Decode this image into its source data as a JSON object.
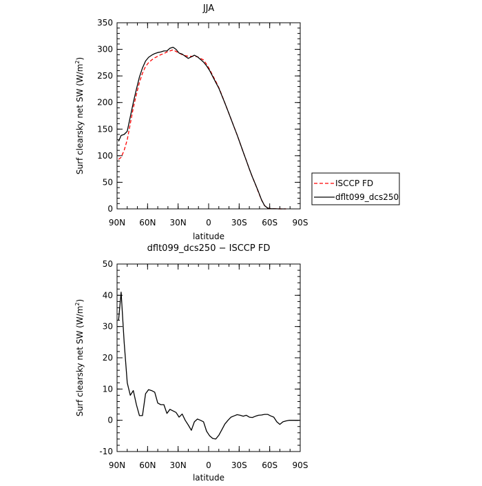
{
  "chart_data": [
    {
      "type": "line",
      "title": "JJA",
      "xlabel": "latitude",
      "ylabel_main": "Surf clearsky net SW (W/m",
      "ylabel_sup": "2",
      "ylabel_tail": ")",
      "xlim": [
        90,
        -90
      ],
      "ylim": [
        0,
        350
      ],
      "yticks": [
        0,
        50,
        100,
        150,
        200,
        250,
        300,
        350
      ],
      "xticks": [
        90,
        60,
        30,
        0,
        -30,
        -60,
        -90
      ],
      "xtick_labels": [
        "90N",
        "60N",
        "30N",
        "0",
        "30S",
        "60S",
        "90S"
      ],
      "legend": [
        "ISCCP FD",
        "dflt099_dcs250"
      ],
      "series": [
        {
          "name": "ISCCP FD",
          "color": "#ff0000",
          "dash": "dashed",
          "x": [
            88.5,
            86,
            83,
            80,
            77,
            74,
            71,
            68,
            65,
            62,
            59,
            56,
            53,
            50,
            47,
            44,
            41,
            38,
            35,
            32,
            29,
            26,
            23,
            20,
            17,
            14,
            11,
            8,
            5,
            2,
            -1,
            -4,
            -7,
            -10,
            -13,
            -16,
            -19,
            -22,
            -25,
            -28,
            -31,
            -34,
            -37,
            -40,
            -43,
            -46,
            -49,
            -52,
            -55,
            -58,
            -61,
            -64,
            -67,
            -70,
            -73,
            -76
          ],
          "y": [
            93,
            97,
            110,
            130,
            160,
            190,
            215,
            238,
            255,
            268,
            275,
            280,
            284,
            287,
            290,
            292,
            295,
            297,
            299,
            296,
            293,
            290,
            288,
            287,
            287,
            287,
            286,
            283,
            280,
            272,
            262,
            251,
            240,
            228,
            214,
            199,
            184,
            169,
            154,
            139,
            123,
            107,
            91,
            75,
            60,
            46,
            31,
            17,
            6,
            1.5,
            0.5,
            0.2,
            0.1,
            0,
            0,
            0
          ]
        },
        {
          "name": "dflt099_dcs250",
          "color": "#000000",
          "dash": "solid",
          "x": [
            88.5,
            86,
            83,
            80,
            77,
            74,
            71,
            68,
            65,
            62,
            59,
            56,
            53,
            50,
            47,
            44,
            41,
            38,
            35,
            32,
            29,
            26,
            23,
            20,
            17,
            14,
            11,
            8,
            5,
            2,
            -1,
            -4,
            -7,
            -10,
            -13,
            -16,
            -19,
            -22,
            -25,
            -28,
            -31,
            -34,
            -37,
            -40,
            -43,
            -46,
            -49,
            -52,
            -55,
            -58,
            -61,
            -64,
            -67,
            -70,
            -73,
            -76
          ],
          "y": [
            127,
            138,
            140,
            146,
            173,
            200,
            225,
            248,
            265,
            278,
            285,
            289,
            292,
            294,
            295,
            297,
            297,
            302,
            304,
            300,
            293,
            291,
            287,
            283,
            286,
            289,
            286,
            281,
            276,
            269,
            260,
            249,
            238,
            227,
            213,
            199,
            184,
            169,
            154,
            139,
            123,
            107,
            91,
            75,
            60,
            46,
            32,
            17,
            6,
            1.5,
            0.5,
            0.2,
            0.1,
            0,
            0,
            0
          ]
        }
      ]
    },
    {
      "type": "line",
      "title": "dflt099_dcs250 − ISCCP FD",
      "xlabel": "latitude",
      "ylabel_main": "Surf clearsky net SW (W/m",
      "ylabel_sup": "2",
      "ylabel_tail": ")",
      "xlim": [
        90,
        -90
      ],
      "ylim": [
        -10,
        50
      ],
      "yticks": [
        -10,
        0,
        10,
        20,
        30,
        40,
        50
      ],
      "xticks": [
        90,
        60,
        30,
        0,
        -30,
        -60,
        -90
      ],
      "xtick_labels": [
        "90N",
        "60N",
        "30N",
        "0",
        "30S",
        "60S",
        "90S"
      ],
      "series": [
        {
          "color": "#000000",
          "dash": "solid",
          "x": [
            88.5,
            86,
            83,
            80,
            77,
            74,
            71,
            68,
            65,
            62,
            59,
            56,
            53,
            50,
            47,
            44,
            41,
            38,
            35,
            32,
            29,
            26,
            23,
            20,
            17,
            14,
            11,
            8,
            5,
            2,
            -1,
            -4,
            -7,
            -10,
            -13,
            -16,
            -19,
            -22,
            -25,
            -28,
            -31,
            -34,
            -37,
            -40,
            -43,
            -46,
            -49,
            -52,
            -55,
            -58,
            -61,
            -64,
            -67,
            -70,
            -73,
            -76,
            -79,
            -82,
            -85,
            -88.5
          ],
          "y": [
            32,
            41,
            25,
            12,
            8,
            9.5,
            5,
            1.5,
            1.5,
            8.5,
            9.8,
            9.5,
            9,
            5.5,
            5,
            5,
            2.2,
            3.5,
            3,
            2.5,
            1,
            2,
            0,
            -1.5,
            -3.2,
            -0.5,
            0.4,
            0,
            -0.5,
            -3.5,
            -5,
            -5.8,
            -6,
            -4.8,
            -3,
            -1.2,
            0,
            1,
            1.4,
            1.8,
            1.6,
            1.3,
            1.6,
            1.0,
            0.9,
            1.3,
            1.6,
            1.7,
            1.9,
            1.9,
            1.4,
            1.0,
            -0.5,
            -1.3,
            -0.5,
            -0.2,
            0,
            0,
            0,
            0
          ]
        }
      ]
    }
  ]
}
